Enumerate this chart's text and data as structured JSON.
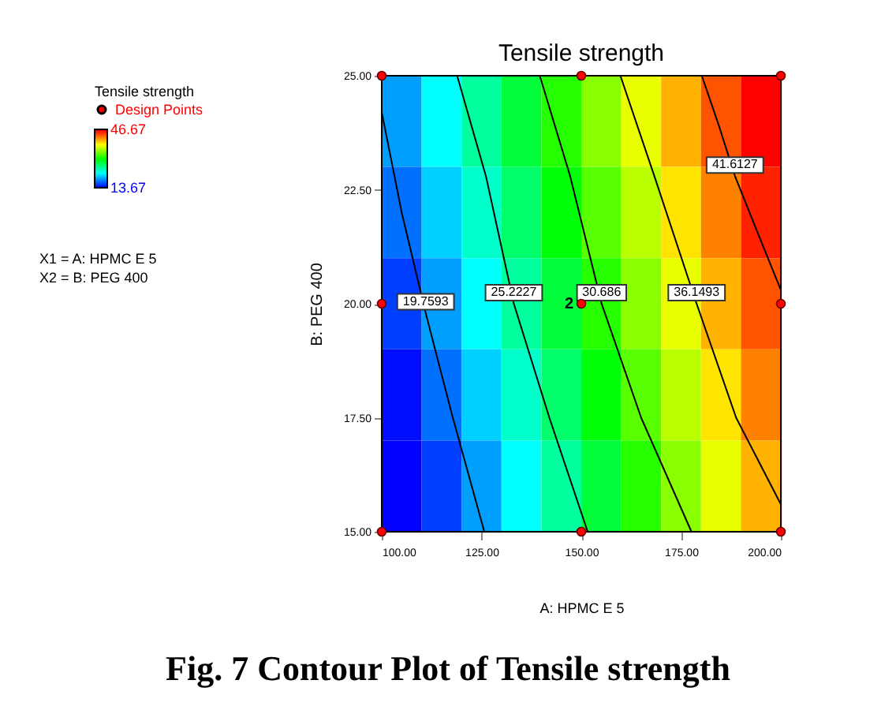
{
  "chart_data": {
    "type": "heatmap",
    "title": "Tensile strength",
    "xlabel": "A: HPMC E 5",
    "ylabel": "B: PEG 400",
    "legend_title": "Tensile strength",
    "legend": "left",
    "grid": false,
    "xlim": [
      100,
      200
    ],
    "ylim": [
      15,
      25
    ],
    "xticks": [
      {
        "value": 100,
        "label": "100.00"
      },
      {
        "value": 125,
        "label": "125.00"
      },
      {
        "value": 150,
        "label": "150.00"
      },
      {
        "value": 175,
        "label": "175.00"
      },
      {
        "value": 200,
        "label": "200.00"
      }
    ],
    "yticks": [
      {
        "value": 15,
        "label": "15.00"
      },
      {
        "value": 17.5,
        "label": "17.50"
      },
      {
        "value": 20,
        "label": "20.00"
      },
      {
        "value": 22.5,
        "label": "22.50"
      },
      {
        "value": 25,
        "label": "25.00"
      }
    ],
    "clim": [
      13.67,
      46.67
    ],
    "cticks": [
      13.67,
      46.67
    ],
    "cells": [
      [
        18.8,
        22.0,
        25.1,
        28.3,
        31.4,
        34.6,
        37.7,
        40.9,
        44.0,
        46.6
      ],
      [
        17.3,
        20.4,
        23.6,
        26.7,
        29.9,
        33.0,
        36.2,
        39.3,
        42.5,
        45.6
      ],
      [
        15.7,
        18.8,
        22.0,
        25.1,
        28.3,
        31.4,
        34.6,
        37.7,
        40.9,
        44.0
      ],
      [
        14.1,
        17.3,
        20.4,
        23.6,
        26.7,
        29.9,
        33.0,
        36.2,
        39.3,
        42.5
      ],
      [
        13.7,
        15.7,
        18.8,
        22.0,
        25.1,
        28.3,
        31.4,
        34.6,
        37.7,
        40.9
      ]
    ],
    "series": [
      {
        "type": "line",
        "name": "19.7593",
        "color": "#000000",
        "x": [
          100,
          105,
          111,
          117.5,
          125.7
        ],
        "values": [
          24.2,
          22,
          19.8,
          17.6,
          15
        ]
      },
      {
        "type": "line",
        "name": "25.2227",
        "color": "#000000",
        "x": [
          118.9,
          126.1,
          133.1,
          142,
          151.6
        ],
        "values": [
          25,
          22.8,
          20,
          17.5,
          15
        ]
      },
      {
        "type": "line",
        "name": "30.686",
        "color": "#000000",
        "x": [
          139.6,
          147.2,
          155.1,
          165,
          177.6
        ],
        "values": [
          25,
          22.8,
          20,
          17.5,
          15
        ]
      },
      {
        "type": "line",
        "name": "36.1493",
        "color": "#000000",
        "x": [
          159.8,
          168.3,
          178.9,
          188.8,
          200
        ],
        "values": [
          25,
          22.8,
          20,
          17.5,
          15.6
        ]
      },
      {
        "type": "line",
        "name": "41.6127",
        "color": "#000000",
        "x": [
          180.2,
          184.5,
          188.5,
          194,
          200
        ],
        "values": [
          25,
          23.9,
          22.8,
          21.6,
          20.3
        ]
      },
      {
        "type": "scatter",
        "name": "Design Points",
        "color": "#ff0000",
        "marker": "circle",
        "x": [
          100,
          150,
          200,
          100,
          150,
          200,
          100,
          150,
          200
        ],
        "values": [
          25,
          25,
          25,
          20,
          20,
          20,
          15,
          15,
          15
        ]
      }
    ],
    "annotations": [
      "X1 = A: HPMC E 5",
      "X2 = B: PEG 400",
      {
        "text": "2",
        "x": 150,
        "y": 20
      },
      "Fig. 7 Contour Plot of Tensile strength"
    ]
  }
}
